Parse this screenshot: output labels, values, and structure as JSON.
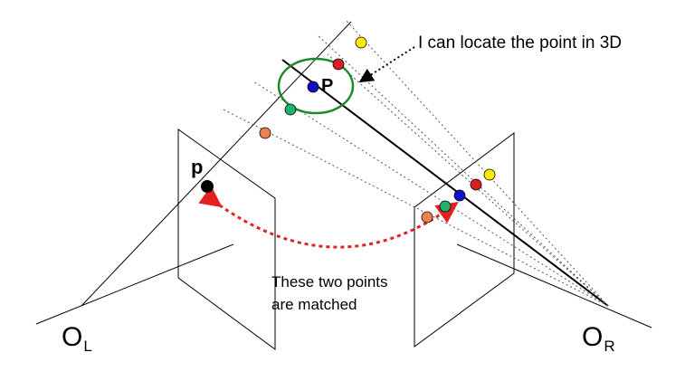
{
  "labels": {
    "annotation_3d": "I can locate the point in 3D",
    "matched_line1": "These two points",
    "matched_line2": "are matched",
    "point_3d": "P",
    "point_image": "p",
    "left_center_base": "O",
    "left_center_sub": "L",
    "right_center_base": "O",
    "right_center_sub": "R"
  },
  "colors": {
    "line": "#000000",
    "dotted": "#555555",
    "highlight_circle": "#1a8a2a",
    "match_arrow": "#e52020",
    "point_yellow": "#ffeb00",
    "point_red": "#d81e1e",
    "point_blue": "#1010c8",
    "point_green": "#20b070",
    "point_orange": "#f08050",
    "point_black": "#000000"
  }
}
